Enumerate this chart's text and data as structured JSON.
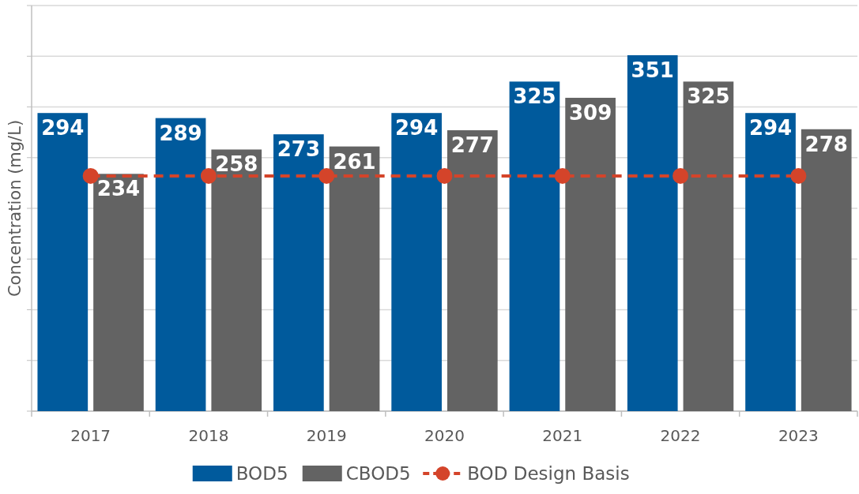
{
  "chart_data": {
    "type": "bar",
    "ylabel": "Concentration (mg/L)",
    "categories": [
      "2017",
      "2018",
      "2019",
      "2020",
      "2021",
      "2022",
      "2023"
    ],
    "series": [
      {
        "name": "BOD5",
        "color": "#005a9c",
        "values": [
          294,
          289,
          273,
          294,
          325,
          351,
          294
        ],
        "value_labels": [
          "294",
          "289",
          "273",
          "294",
          "325",
          "351",
          "294"
        ]
      },
      {
        "name": "CBOD5",
        "color": "#636363",
        "values": [
          234,
          258,
          261,
          277,
          309,
          325,
          278
        ],
        "value_labels": [
          "234",
          "258",
          "261",
          "277",
          "309",
          "325",
          "278"
        ]
      },
      {
        "name": "BOD Design Basis",
        "type": "line",
        "color": "#d4442a",
        "values": [
          232,
          232,
          232,
          232,
          232,
          232,
          232
        ],
        "line_style": "dashed",
        "marker": "circle"
      }
    ],
    "ylim": [
      0,
      400
    ],
    "yticks": [
      {
        "value": 0,
        "label": null
      },
      {
        "value": 50,
        "label": null
      },
      {
        "value": 100,
        "label": null
      },
      {
        "value": 150,
        "label": null
      },
      {
        "value": 200,
        "label": null
      },
      {
        "value": 250,
        "label": null
      },
      {
        "value": 300,
        "label": null
      },
      {
        "value": 350,
        "label": null
      },
      {
        "value": 400,
        "label": null
      }
    ],
    "grid": "y",
    "legend": "bottom",
    "tick_labels": "x"
  }
}
